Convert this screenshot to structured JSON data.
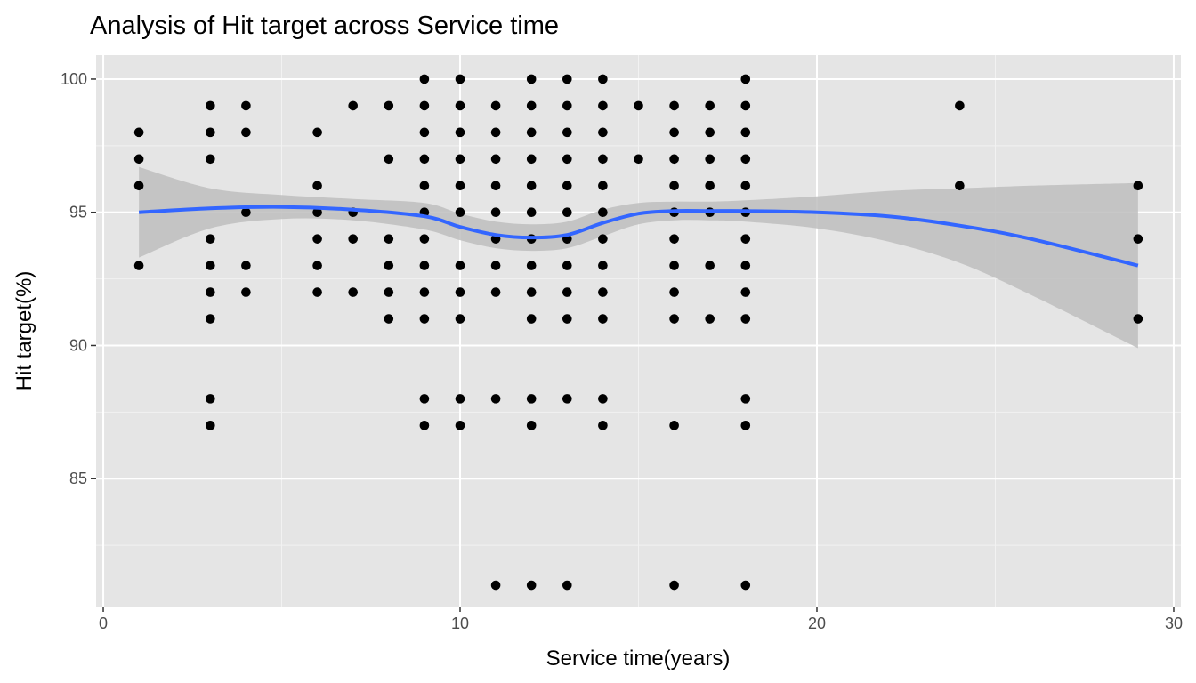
{
  "chart_data": {
    "type": "scatter",
    "title": "Analysis of Hit target across Service time",
    "xlabel": "Service time(years)",
    "ylabel": "Hit target(%)",
    "xlim": [
      -0.2,
      30.2
    ],
    "ylim": [
      80.2,
      100.9
    ],
    "x_ticks": [
      0,
      10,
      20,
      30
    ],
    "y_ticks": [
      85,
      90,
      95,
      100
    ],
    "grid": true,
    "background": "#e5e5e5",
    "point_color": "#000000",
    "smooth_color": "#3366ff",
    "band_color": "#bebebe",
    "points": [
      [
        1,
        98
      ],
      [
        1,
        97
      ],
      [
        1,
        96
      ],
      [
        1,
        93
      ],
      [
        3,
        99
      ],
      [
        3,
        98
      ],
      [
        3,
        97
      ],
      [
        3,
        94
      ],
      [
        3,
        93
      ],
      [
        3,
        92
      ],
      [
        3,
        91
      ],
      [
        3,
        88
      ],
      [
        3,
        87
      ],
      [
        4,
        99
      ],
      [
        4,
        98
      ],
      [
        4,
        95
      ],
      [
        4,
        93
      ],
      [
        4,
        92
      ],
      [
        6,
        98
      ],
      [
        6,
        96
      ],
      [
        6,
        95
      ],
      [
        6,
        94
      ],
      [
        6,
        93
      ],
      [
        6,
        92
      ],
      [
        7,
        99
      ],
      [
        7,
        95
      ],
      [
        7,
        94
      ],
      [
        7,
        92
      ],
      [
        8,
        99
      ],
      [
        8,
        97
      ],
      [
        8,
        94
      ],
      [
        8,
        93
      ],
      [
        8,
        92
      ],
      [
        8,
        91
      ],
      [
        9,
        100
      ],
      [
        9,
        99
      ],
      [
        9,
        98
      ],
      [
        9,
        97
      ],
      [
        9,
        96
      ],
      [
        9,
        95
      ],
      [
        9,
        94
      ],
      [
        9,
        93
      ],
      [
        9,
        92
      ],
      [
        9,
        91
      ],
      [
        9,
        88
      ],
      [
        9,
        87
      ],
      [
        10,
        100
      ],
      [
        10,
        99
      ],
      [
        10,
        98
      ],
      [
        10,
        97
      ],
      [
        10,
        96
      ],
      [
        10,
        95
      ],
      [
        10,
        93
      ],
      [
        10,
        92
      ],
      [
        10,
        91
      ],
      [
        10,
        88
      ],
      [
        10,
        87
      ],
      [
        11,
        99
      ],
      [
        11,
        98
      ],
      [
        11,
        97
      ],
      [
        11,
        96
      ],
      [
        11,
        95
      ],
      [
        11,
        94
      ],
      [
        11,
        93
      ],
      [
        11,
        92
      ],
      [
        11,
        88
      ],
      [
        11,
        81
      ],
      [
        12,
        100
      ],
      [
        12,
        99
      ],
      [
        12,
        98
      ],
      [
        12,
        97
      ],
      [
        12,
        96
      ],
      [
        12,
        95
      ],
      [
        12,
        94
      ],
      [
        12,
        93
      ],
      [
        12,
        92
      ],
      [
        12,
        91
      ],
      [
        12,
        88
      ],
      [
        12,
        87
      ],
      [
        12,
        81
      ],
      [
        13,
        100
      ],
      [
        13,
        99
      ],
      [
        13,
        98
      ],
      [
        13,
        97
      ],
      [
        13,
        96
      ],
      [
        13,
        95
      ],
      [
        13,
        94
      ],
      [
        13,
        93
      ],
      [
        13,
        92
      ],
      [
        13,
        91
      ],
      [
        13,
        88
      ],
      [
        13,
        81
      ],
      [
        14,
        100
      ],
      [
        14,
        99
      ],
      [
        14,
        98
      ],
      [
        14,
        97
      ],
      [
        14,
        96
      ],
      [
        14,
        95
      ],
      [
        14,
        94
      ],
      [
        14,
        93
      ],
      [
        14,
        92
      ],
      [
        14,
        91
      ],
      [
        14,
        88
      ],
      [
        14,
        87
      ],
      [
        15,
        99
      ],
      [
        15,
        97
      ],
      [
        16,
        99
      ],
      [
        16,
        98
      ],
      [
        16,
        97
      ],
      [
        16,
        96
      ],
      [
        16,
        95
      ],
      [
        16,
        94
      ],
      [
        16,
        93
      ],
      [
        16,
        92
      ],
      [
        16,
        91
      ],
      [
        16,
        87
      ],
      [
        16,
        81
      ],
      [
        17,
        99
      ],
      [
        17,
        98
      ],
      [
        17,
        97
      ],
      [
        17,
        96
      ],
      [
        17,
        95
      ],
      [
        17,
        93
      ],
      [
        17,
        91
      ],
      [
        18,
        100
      ],
      [
        18,
        99
      ],
      [
        18,
        98
      ],
      [
        18,
        97
      ],
      [
        18,
        96
      ],
      [
        18,
        95
      ],
      [
        18,
        94
      ],
      [
        18,
        93
      ],
      [
        18,
        92
      ],
      [
        18,
        91
      ],
      [
        18,
        88
      ],
      [
        18,
        87
      ],
      [
        18,
        81
      ],
      [
        24,
        99
      ],
      [
        24,
        96
      ],
      [
        29,
        96
      ],
      [
        29,
        94
      ],
      [
        29,
        91
      ]
    ],
    "smooth": {
      "x": [
        1,
        3,
        5,
        7,
        9,
        10,
        11,
        12,
        13,
        14,
        15,
        16,
        17,
        18,
        20,
        22,
        24,
        26,
        29
      ],
      "y": [
        95.0,
        95.15,
        95.2,
        95.1,
        94.85,
        94.45,
        94.15,
        94.05,
        94.15,
        94.6,
        94.95,
        95.05,
        95.05,
        95.05,
        95.0,
        94.85,
        94.5,
        94.0,
        93.0
      ],
      "lower": [
        93.3,
        94.4,
        94.75,
        94.7,
        94.35,
        93.95,
        93.65,
        93.55,
        93.65,
        94.1,
        94.55,
        94.7,
        94.7,
        94.65,
        94.4,
        93.9,
        93.1,
        91.9,
        89.9
      ],
      "upper": [
        96.7,
        95.9,
        95.65,
        95.5,
        95.35,
        94.95,
        94.65,
        94.55,
        94.65,
        95.1,
        95.35,
        95.4,
        95.4,
        95.45,
        95.6,
        95.8,
        95.9,
        96.0,
        96.1
      ]
    }
  }
}
